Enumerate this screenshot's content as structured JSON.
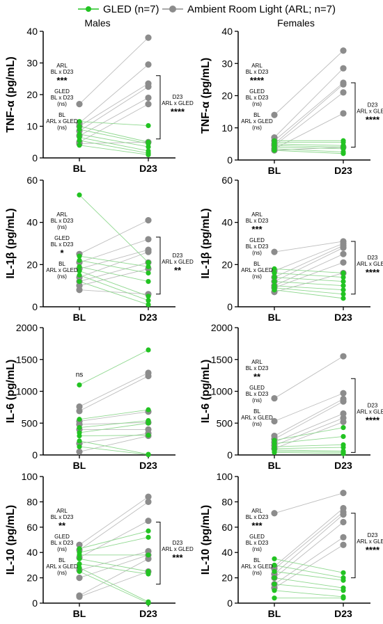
{
  "legend": [
    {
      "label": "GLED (n=7)",
      "color": "#22c322"
    },
    {
      "label": "Ambient Room Light (ARL; n=7)",
      "color": "#8c8c8c"
    }
  ],
  "column_titles": [
    "Males",
    "Females"
  ],
  "colors": {
    "gled": "#22c322",
    "arl": "#8c8c8c",
    "gled_line": "#8fd88f",
    "arl_line": "#bdbdbd"
  },
  "chart_data": [
    {
      "id": "tnf-males",
      "type": "scatter",
      "ylabel": "TNF-α (pg/mL)",
      "categories": [
        "BL",
        "D23"
      ],
      "ylim": [
        0,
        40
      ],
      "yticks": [
        0,
        10,
        20,
        30,
        40
      ],
      "series": [
        {
          "name": "GLED (n=7)",
          "group": "gled",
          "bl": [
            11.5,
            10,
            9,
            7.5,
            6.5,
            5.5,
            4
          ],
          "d23": [
            10.2,
            5,
            4.5,
            3.5,
            2.2,
            1.5,
            1
          ]
        },
        {
          "name": "Ambient Room Light (ARL; n=7)",
          "group": "arl",
          "bl": [
            17,
            11,
            10,
            8.5,
            7,
            5,
            4.5
          ],
          "d23": [
            38,
            29.5,
            23.5,
            22.5,
            19,
            17,
            5
          ]
        }
      ],
      "annotations": [
        {
          "lines": [
            "ARL",
            "BL x D23"
          ],
          "stars": "***"
        },
        {
          "lines": [
            "GLED",
            "BL x D23",
            "(ns)"
          ],
          "stars": ""
        },
        {
          "lines": [
            "BL",
            "ARL x GLED",
            "(ns)"
          ],
          "stars": ""
        }
      ],
      "bracket": {
        "range": [
          6,
          26
        ],
        "lines": [
          "D23",
          "ARL x GLED"
        ],
        "stars": "****"
      }
    },
    {
      "id": "tnf-females",
      "type": "scatter",
      "ylabel": "TNF-α (pg/mL)",
      "categories": [
        "BL",
        "D23"
      ],
      "ylim": [
        0,
        40
      ],
      "yticks": [
        0,
        10,
        20,
        30,
        40
      ],
      "series": [
        {
          "name": "GLED (n=7)",
          "group": "gled",
          "bl": [
            6,
            5.5,
            5,
            4.5,
            4,
            3.5,
            3
          ],
          "d23": [
            6,
            5.5,
            4.5,
            4,
            3.5,
            2.5,
            2
          ]
        },
        {
          "name": "Ambient Room Light (ARL; n=7)",
          "group": "arl",
          "bl": [
            14,
            7,
            6,
            5,
            4.5,
            3.5,
            3
          ],
          "d23": [
            34,
            28.5,
            24,
            23.5,
            21,
            14.5,
            4
          ]
        }
      ],
      "annotations": [
        {
          "lines": [
            "ARL",
            "BL x D23"
          ],
          "stars": "****"
        },
        {
          "lines": [
            "GLED",
            "BL x D23",
            "(ns)"
          ],
          "stars": ""
        },
        {
          "lines": [
            "BL",
            "ARL x GLED",
            "(ns)"
          ],
          "stars": ""
        }
      ],
      "bracket": {
        "range": [
          4,
          24
        ],
        "lines": [
          "D23",
          "ARL x GLED"
        ],
        "stars": "****"
      }
    },
    {
      "id": "il1b-males",
      "type": "scatter",
      "ylabel": "IL-1β (pg/mL)",
      "categories": [
        "BL",
        "D23"
      ],
      "ylim": [
        0,
        60
      ],
      "yticks": [
        0,
        20,
        40,
        60
      ],
      "series": [
        {
          "name": "GLED (n=7)",
          "group": "gled",
          "bl": [
            53,
            24,
            22,
            19,
            17,
            15,
            12
          ],
          "d23": [
            21,
            19,
            16,
            12,
            5,
            3,
            1
          ]
        },
        {
          "name": "Ambient Room Light (ARL; n=7)",
          "group": "arl",
          "bl": [
            25,
            21,
            18,
            14,
            12,
            10,
            8
          ],
          "d23": [
            41,
            32,
            27,
            26,
            21,
            18,
            6
          ]
        }
      ],
      "annotations": [
        {
          "lines": [
            "ARL",
            "BL x D23",
            "(ns)"
          ],
          "stars": ""
        },
        {
          "lines": [
            "GLED",
            "BL x D23"
          ],
          "stars": "*"
        },
        {
          "lines": [
            "BL",
            "ARL x GLED",
            "(ns)"
          ],
          "stars": ""
        }
      ],
      "bracket": {
        "range": [
          6,
          33
        ],
        "lines": [
          "D23",
          "ARL x GLED"
        ],
        "stars": "**"
      }
    },
    {
      "id": "il1b-females",
      "type": "scatter",
      "ylabel": "IL-1β (pg/mL)",
      "categories": [
        "BL",
        "D23"
      ],
      "ylim": [
        0,
        60
      ],
      "yticks": [
        0,
        20,
        40,
        60
      ],
      "series": [
        {
          "name": "GLED (n=7)",
          "group": "gled",
          "bl": [
            18,
            16,
            14,
            12,
            10,
            9,
            8
          ],
          "d23": [
            16,
            14,
            12,
            10,
            8,
            6,
            4
          ]
        },
        {
          "name": "Ambient Room Light (ARL; n=7)",
          "group": "arl",
          "bl": [
            26,
            17,
            14,
            12,
            10,
            9,
            7
          ],
          "d23": [
            31,
            30,
            29,
            28,
            25,
            21,
            16
          ]
        }
      ],
      "annotations": [
        {
          "lines": [
            "ARL",
            "BL x D23"
          ],
          "stars": "***"
        },
        {
          "lines": [
            "GLED",
            "BL x D23",
            "(ns)"
          ],
          "stars": ""
        },
        {
          "lines": [
            "BL",
            "ARL x GLED",
            "(ns)"
          ],
          "stars": ""
        }
      ],
      "bracket": {
        "range": [
          6,
          31
        ],
        "lines": [
          "D23",
          "ARL x GLED"
        ],
        "stars": "****"
      }
    },
    {
      "id": "il6-males",
      "type": "scatter",
      "ylabel": "IL-6 (pg/mL)",
      "categories": [
        "BL",
        "D23"
      ],
      "ylim": [
        0,
        2000
      ],
      "yticks": [
        0,
        500,
        1000,
        1500,
        2000
      ],
      "series": [
        {
          "name": "GLED (n=7)",
          "group": "gled",
          "bl": [
            1100,
            560,
            430,
            350,
            300,
            220,
            130
          ],
          "d23": [
            1650,
            710,
            540,
            500,
            310,
            10,
            5
          ]
        },
        {
          "name": "Ambient Room Light (ARL; n=7)",
          "group": "arl",
          "bl": [
            760,
            690,
            530,
            480,
            400,
            180,
            50
          ],
          "d23": [
            1290,
            1240,
            680,
            510,
            400,
            340,
            300
          ]
        }
      ],
      "annotations": [
        {
          "lines": [
            "ns"
          ],
          "stars": ""
        }
      ],
      "bracket": null
    },
    {
      "id": "il6-females",
      "type": "scatter",
      "ylabel": "IL-6 (pg/mL)",
      "categories": [
        "BL",
        "D23"
      ],
      "ylim": [
        0,
        2000
      ],
      "yticks": [
        0,
        500,
        1000,
        1500,
        2000
      ],
      "series": [
        {
          "name": "GLED (n=7)",
          "group": "gled",
          "bl": [
            230,
            180,
            130,
            100,
            80,
            60,
            40
          ],
          "d23": [
            430,
            290,
            160,
            120,
            60,
            40,
            20
          ]
        },
        {
          "name": "Ambient Room Light (ARL; n=7)",
          "group": "arl",
          "bl": [
            890,
            530,
            300,
            250,
            200,
            150,
            100
          ],
          "d23": [
            1550,
            970,
            880,
            840,
            650,
            580,
            520
          ]
        }
      ],
      "annotations": [
        {
          "lines": [
            "ARL",
            "BL x D23"
          ],
          "stars": "**"
        },
        {
          "lines": [
            "GLED",
            "BL x D23",
            "(ns)"
          ],
          "stars": ""
        },
        {
          "lines": [
            "BL",
            "ARL x GLED",
            "(ns)"
          ],
          "stars": ""
        }
      ],
      "bracket": {
        "range": [
          40,
          1200
        ],
        "lines": [
          "D23",
          "ARL x GLED"
        ],
        "stars": "****"
      }
    },
    {
      "id": "il10-males",
      "type": "scatter",
      "ylabel": "IL-10 (pg/mL)",
      "categories": [
        "BL",
        "D23"
      ],
      "ylim": [
        0,
        100
      ],
      "yticks": [
        0,
        20,
        40,
        60,
        80,
        100
      ],
      "series": [
        {
          "name": "GLED (n=7)",
          "group": "gled",
          "bl": [
            43,
            40,
            38,
            35,
            31,
            28,
            25
          ],
          "d23": [
            57,
            52,
            38,
            25,
            23,
            1,
            0
          ]
        },
        {
          "name": "Ambient Room Light (ARL; n=7)",
          "group": "arl",
          "bl": [
            46,
            42,
            36,
            26,
            20,
            6,
            5
          ],
          "d23": [
            84,
            80,
            65,
            41,
            38,
            35,
            25
          ]
        }
      ],
      "annotations": [
        {
          "lines": [
            "ARL",
            "BL x D23"
          ],
          "stars": "**"
        },
        {
          "lines": [
            "GLED",
            "BL x D23",
            "(ns)"
          ],
          "stars": ""
        },
        {
          "lines": [
            "BL",
            "ARL x GLED",
            "(ns)"
          ],
          "stars": ""
        }
      ],
      "bracket": {
        "range": [
          15,
          64
        ],
        "lines": [
          "D23",
          "ARL x GLED"
        ],
        "stars": "***"
      }
    },
    {
      "id": "il10-females",
      "type": "scatter",
      "ylabel": "IL-10 (pg/mL)",
      "categories": [
        "BL",
        "D23"
      ],
      "ylim": [
        0,
        100
      ],
      "yticks": [
        0,
        20,
        40,
        60,
        80,
        100
      ],
      "series": [
        {
          "name": "GLED (n=7)",
          "group": "gled",
          "bl": [
            35,
            30,
            25,
            20,
            15,
            10,
            4
          ],
          "d23": [
            24,
            20,
            18,
            12,
            10,
            5,
            4
          ]
        },
        {
          "name": "Ambient Room Light (ARL; n=7)",
          "group": "arl",
          "bl": [
            71,
            29,
            27,
            23,
            20,
            15,
            12
          ],
          "d23": [
            87,
            75,
            72,
            70,
            64,
            52,
            46
          ]
        }
      ],
      "annotations": [
        {
          "lines": [
            "ARL",
            "BL x D23"
          ],
          "stars": "***"
        },
        {
          "lines": [
            "GLED",
            "BL x D23",
            "(ns)"
          ],
          "stars": ""
        },
        {
          "lines": [
            "BL",
            "ARL x GLED",
            "(ns)"
          ],
          "stars": ""
        }
      ],
      "bracket": {
        "range": [
          20,
          71
        ],
        "lines": [
          "D23",
          "ARL x GLED"
        ],
        "stars": "****"
      }
    }
  ]
}
